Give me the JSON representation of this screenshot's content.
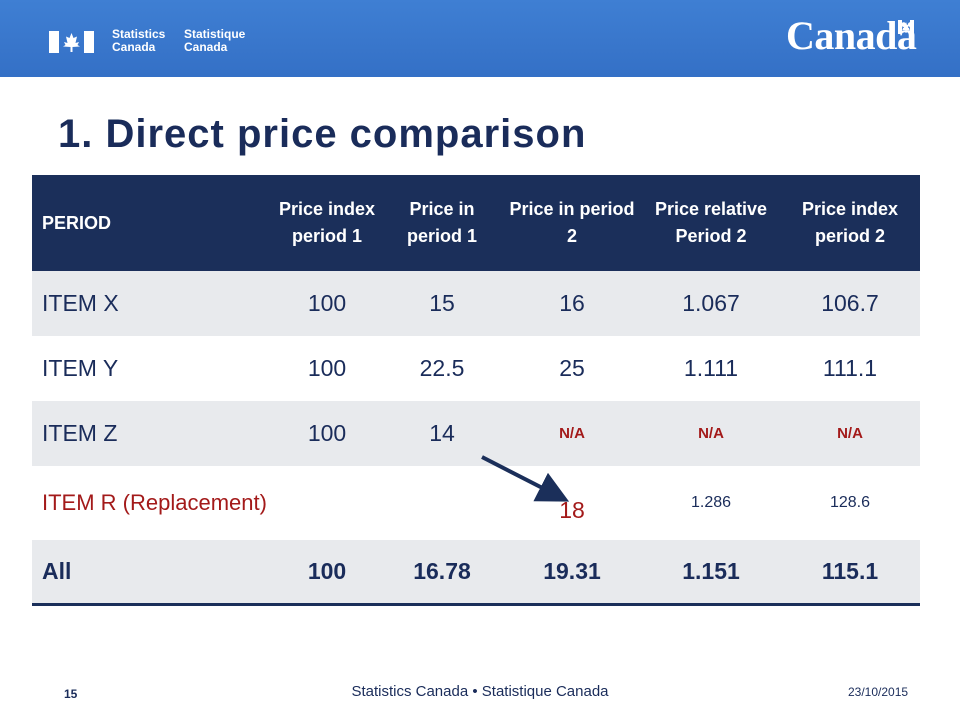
{
  "header": {
    "org_en": "Statistics Canada",
    "org_fr": "Statistique Canada",
    "wordmark": "Canadä"
  },
  "slide": {
    "title": "1. Direct price comparison"
  },
  "table": {
    "headers": [
      "PERIOD",
      "Price index period 1",
      "Price in period 1",
      "Price in period 2",
      "Price relative Period 2",
      "Price index period 2"
    ],
    "rows": [
      {
        "item": "ITEM X",
        "idx1": "100",
        "p1": "15",
        "p2": "16",
        "rel2": "1.067",
        "idx2": "106.7"
      },
      {
        "item": "ITEM Y",
        "idx1": "100",
        "p1": "22.5",
        "p2": "25",
        "rel2": "1.111",
        "idx2": "111.1"
      },
      {
        "item": "ITEM Z",
        "idx1": "100",
        "p1": "14",
        "p2": "N/A",
        "rel2": "N/A",
        "idx2": "N/A"
      },
      {
        "item": "ITEM R (Replacement)",
        "idx1": "",
        "p1": "",
        "p2": "18",
        "rel2": "1.286",
        "idx2": "128.6"
      },
      {
        "item": "All",
        "idx1": "100",
        "p1": "16.78",
        "p2": "19.31",
        "rel2": "1.151",
        "idx2": "115.1"
      }
    ]
  },
  "footer": {
    "page": "15",
    "text": "Statistics Canada • Statistique Canada",
    "date": "23/10/2015"
  },
  "colors": {
    "banner": "#3574c8",
    "navy": "#1b2f5a",
    "accent_red": "#a31a1a"
  }
}
